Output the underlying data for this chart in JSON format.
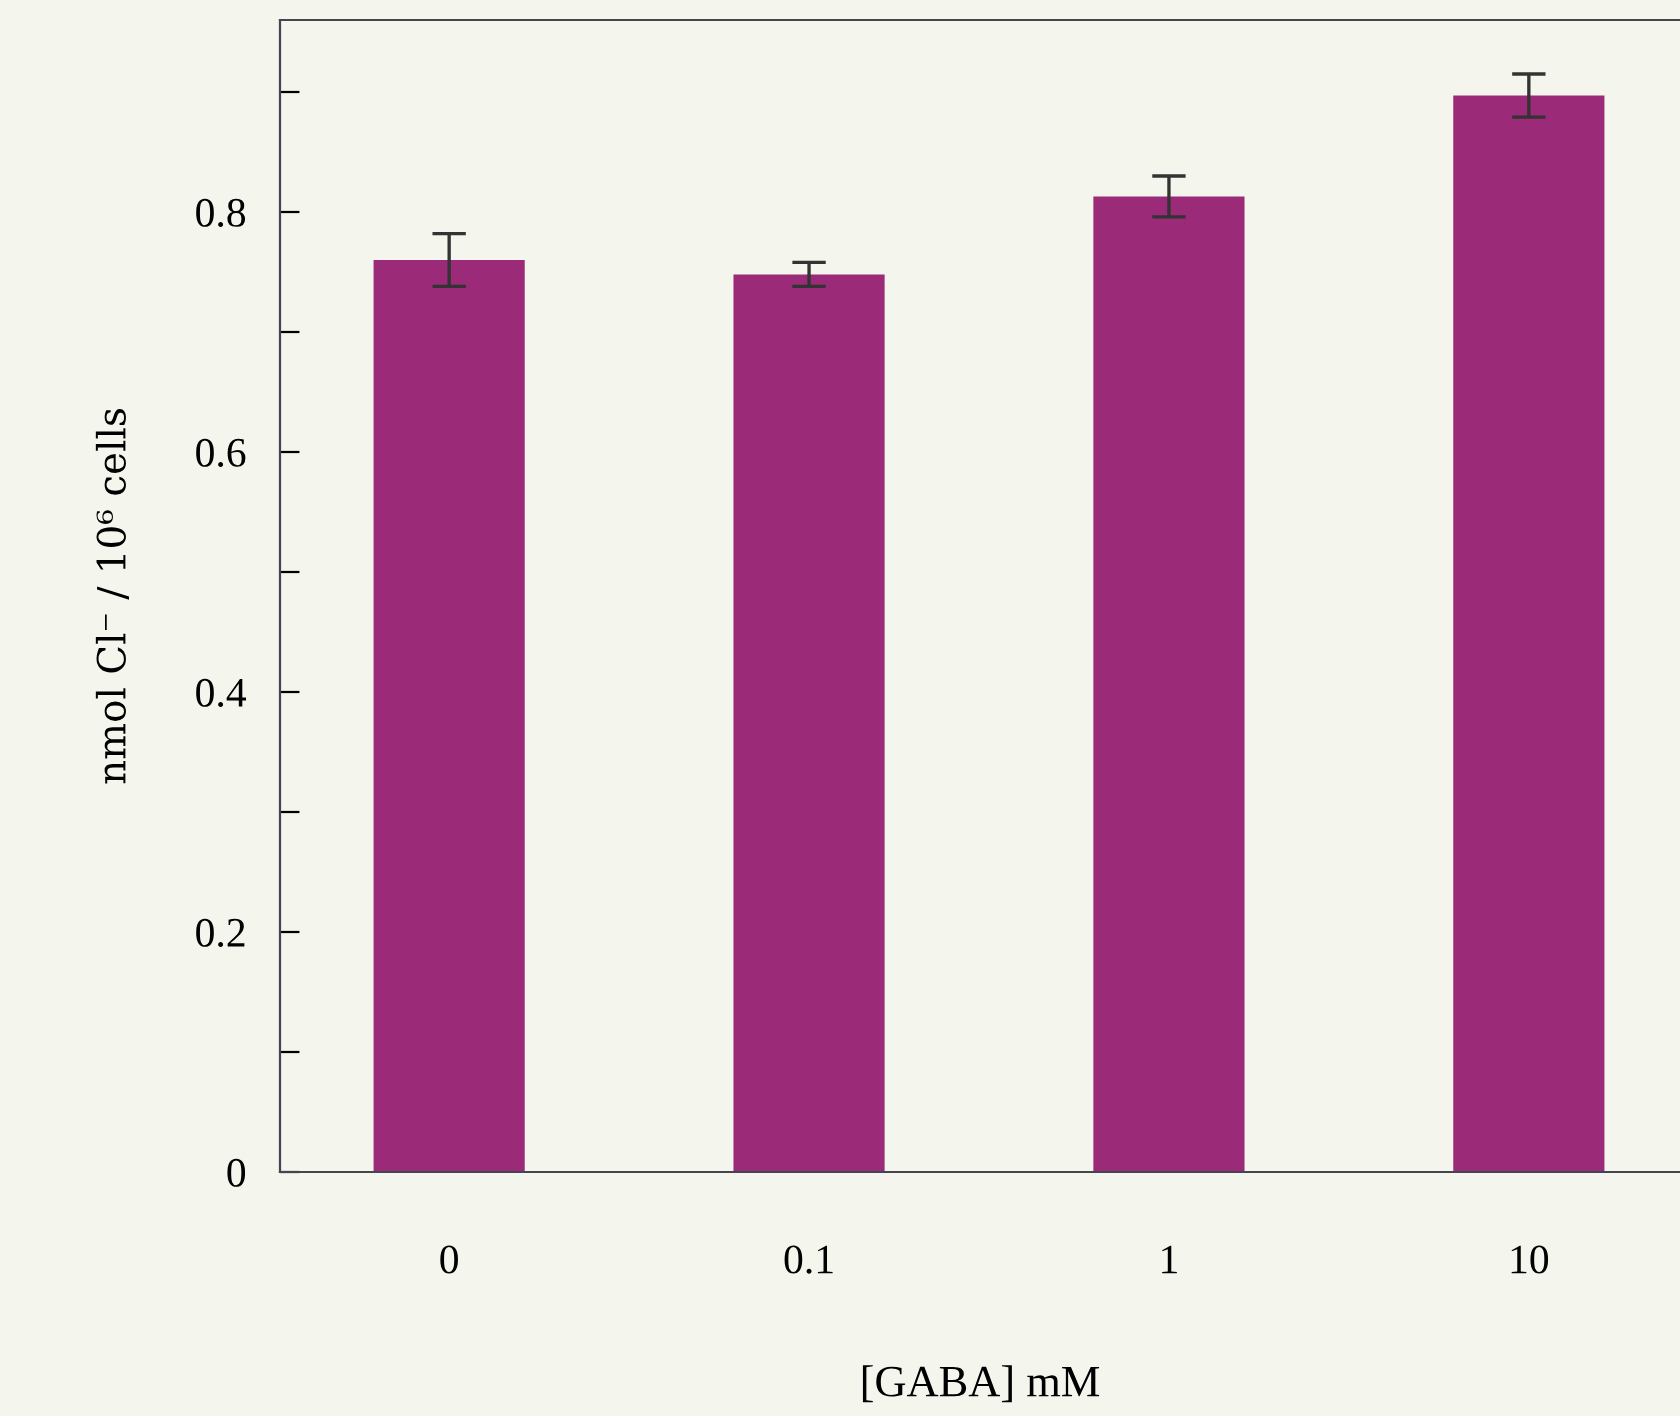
{
  "chart_data": {
    "type": "bar",
    "xlabel": "[GABA] mM",
    "ylabel": "nmol Cl⁻ / 10⁶ cells",
    "categories": [
      "0",
      "0.1",
      "1",
      "10"
    ],
    "values": [
      0.76,
      0.748,
      0.813,
      0.897
    ],
    "errors": [
      0.022,
      0.01,
      0.017,
      0.018
    ],
    "color": "#9b2a78",
    "ylim": [
      0,
      0.96
    ],
    "yticks": [
      0,
      {
        "value": 0.1,
        "label": null
      },
      0.2,
      {
        "value": 0.3,
        "label": null
      },
      0.4,
      {
        "value": 0.5,
        "label": null
      },
      0.6,
      {
        "value": 0.7,
        "label": null
      },
      0.8,
      {
        "value": 0.9,
        "label": null
      }
    ],
    "grid": false,
    "legend": false
  }
}
